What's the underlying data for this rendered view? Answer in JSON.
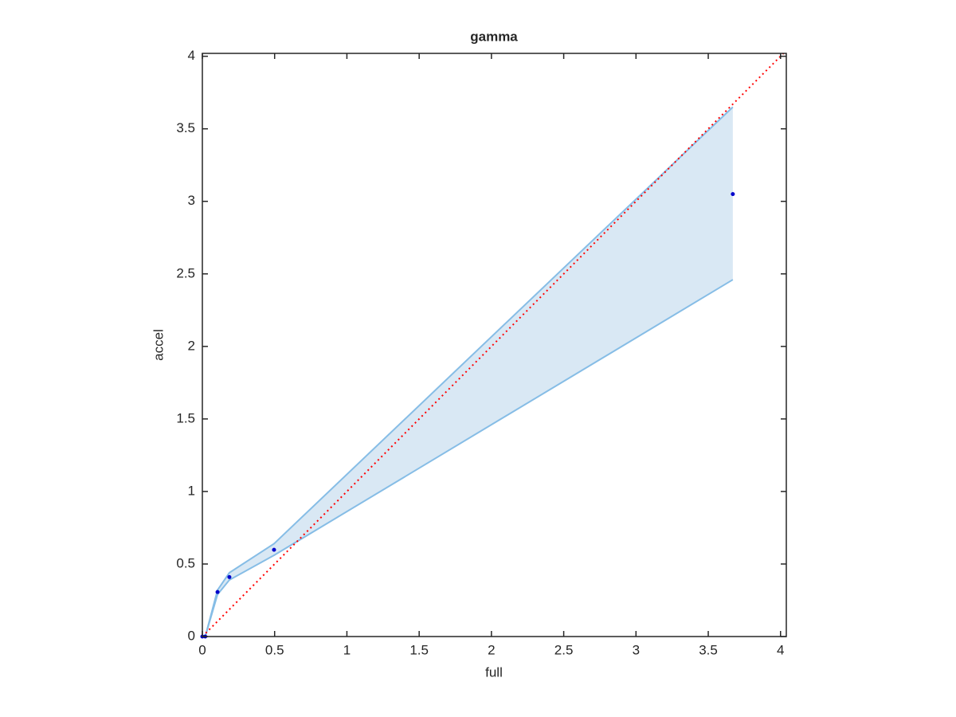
{
  "chart_data": {
    "type": "band-scatter",
    "title": "gamma",
    "x_label": "full",
    "y_label": "accel",
    "x": [
      0,
      0.02,
      0.105,
      0.187,
      0.496,
      3.67
    ],
    "values": [
      0,
      0,
      0.307,
      0.41,
      0.598,
      3.05
    ],
    "lower": [
      0,
      0,
      0.29,
      0.39,
      0.56,
      2.46
    ],
    "upper": [
      0,
      0,
      0.32,
      0.44,
      0.64,
      3.65
    ],
    "point_color": "#0000cc",
    "band_color": "#d9e8f4",
    "band_edge_color": "#86bde6",
    "reference_line": {
      "color": "#ff0000",
      "style": "dotted"
    },
    "xlim": [
      0,
      4.04
    ],
    "ylim": [
      0,
      4.02
    ],
    "xticks": [
      0,
      0.5,
      1,
      1.5,
      2,
      2.5,
      3,
      3.5,
      4
    ],
    "yticks": [
      0,
      0.5,
      1,
      1.5,
      2,
      2.5,
      3,
      3.5,
      4
    ]
  }
}
